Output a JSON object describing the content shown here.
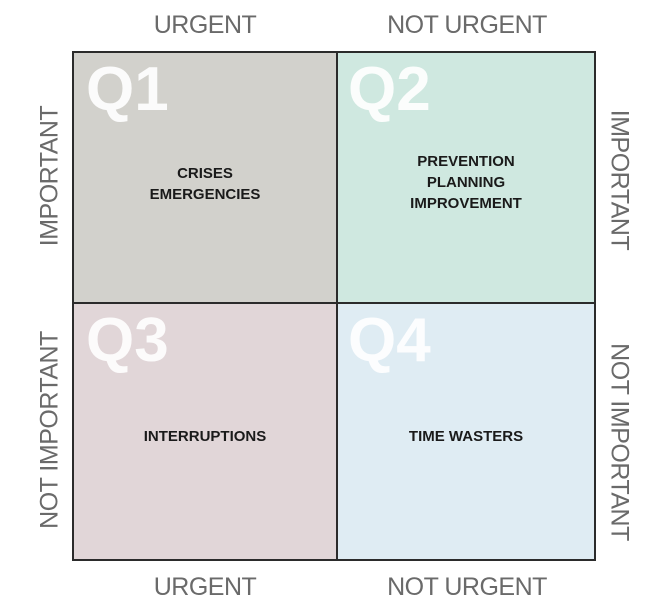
{
  "axes": {
    "top_left": "URGENT",
    "top_right": "NOT URGENT",
    "bottom_left": "URGENT",
    "bottom_right": "NOT URGENT",
    "left_top": "IMPORTANT",
    "left_bottom": "NOT IMPORTANT",
    "right_top": "IMPORTANT",
    "right_bottom": "NOT IMPORTANT"
  },
  "quadrants": [
    {
      "id": "Q1",
      "text": "CRISES\nEMERGENCIES",
      "color": "#d2d1cc"
    },
    {
      "id": "Q2",
      "text": "PREVENTION\nPLANNING\nIMPROVEMENT",
      "color": "#cfe8e0"
    },
    {
      "id": "Q3",
      "text": "INTERRUPTIONS",
      "color": "#e1d6d8"
    },
    {
      "id": "Q4",
      "text": "TIME WASTERS",
      "color": "#dfecf3"
    }
  ]
}
